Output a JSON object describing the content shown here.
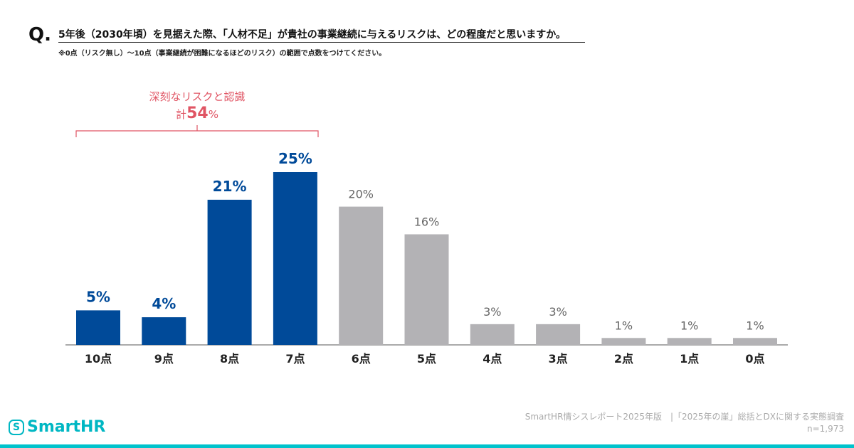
{
  "question": {
    "mark": "Q.",
    "text": "5年後（2030年頃）を見据えた際、「人材不足」が貴社の事業継続に与えるリスクは、どの程度だと思いますか。",
    "note": "※0点（リスク無し）～10点（事業継続が困難になるほどのリスク）の範囲で点数をつけてください。"
  },
  "annotation": {
    "line1": "深刻なリスクと認識",
    "prefix": "計",
    "value": "54",
    "unit": "%"
  },
  "chart_data": {
    "type": "bar",
    "categories": [
      "10点",
      "9点",
      "8点",
      "7点",
      "6点",
      "5点",
      "4点",
      "3点",
      "2点",
      "1点",
      "0点"
    ],
    "values": [
      5,
      4,
      21,
      25,
      20,
      16,
      3,
      3,
      1,
      1,
      1
    ],
    "labels": [
      "5%",
      "4%",
      "21%",
      "25%",
      "20%",
      "16%",
      "3%",
      "3%",
      "1%",
      "1%",
      "1%"
    ],
    "highlighted": [
      true,
      true,
      true,
      true,
      false,
      false,
      false,
      false,
      false,
      false,
      false
    ],
    "colors": {
      "highlight": "#004a99",
      "other": "#b3b2b5"
    },
    "ylim": [
      0,
      25
    ]
  },
  "footer": {
    "source": "SmartHR情シスレポート2025年版　|「2025年の崖」総括とDXに関する実態調査",
    "n": "n=1,973",
    "logo": "SmartHR",
    "brand_color": "#00b7c3"
  }
}
